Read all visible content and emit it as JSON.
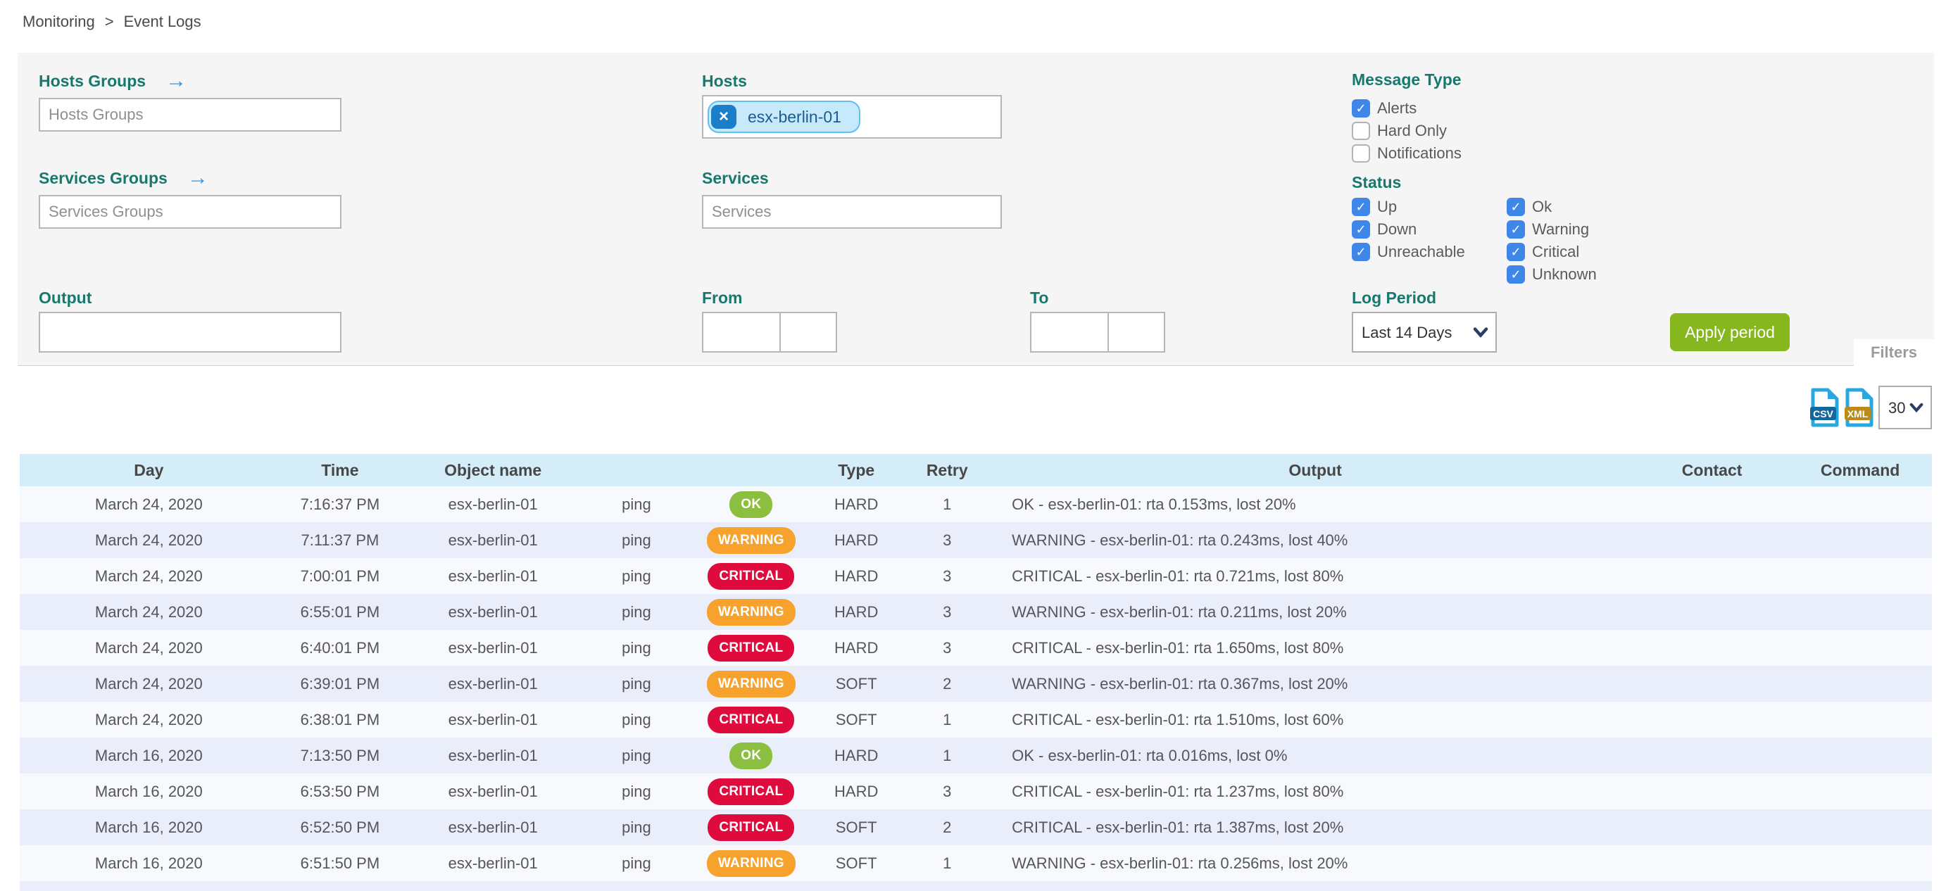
{
  "breadcrumb": {
    "items": [
      "Monitoring",
      "Event Logs"
    ],
    "separator": ">"
  },
  "filter_panel": {
    "goto_arrow": "→",
    "tag_remove_icon": "×",
    "hosts_groups_label": "Hosts Groups",
    "hosts_groups_placeholder": "Hosts Groups",
    "services_groups_label": "Services Groups",
    "services_groups_placeholder": "Services Groups",
    "hosts_label": "Hosts",
    "hosts_selected": [
      "esx-berlin-01"
    ],
    "services_label": "Services",
    "services_placeholder": "Services",
    "output_label": "Output",
    "output_value": "",
    "from_label": "From",
    "from_date": "",
    "from_time": "",
    "to_label": "To",
    "to_date": "",
    "to_time": "",
    "message_type_label": "Message Type",
    "message_type_options": [
      {
        "label": "Alerts",
        "checked": true
      },
      {
        "label": "Hard Only",
        "checked": false
      },
      {
        "label": "Notifications",
        "checked": false
      }
    ],
    "status_label": "Status",
    "status_host_options": [
      {
        "label": "Up",
        "checked": true
      },
      {
        "label": "Down",
        "checked": true
      },
      {
        "label": "Unreachable",
        "checked": true
      }
    ],
    "status_service_options": [
      {
        "label": "Ok",
        "checked": true
      },
      {
        "label": "Warning",
        "checked": true
      },
      {
        "label": "Critical",
        "checked": true
      },
      {
        "label": "Unknown",
        "checked": true
      }
    ],
    "log_period_label": "Log Period",
    "log_period_selected": "Last 14 Days",
    "apply_button_label": "Apply period",
    "filters_tab_label": "Filters"
  },
  "toolbar": {
    "csv_icon_label": "CSV",
    "xml_icon_label": "XML",
    "page_size_selected": "30"
  },
  "table": {
    "columns": [
      {
        "key": "day",
        "label": "Day"
      },
      {
        "key": "time",
        "label": "Time"
      },
      {
        "key": "object",
        "label": "Object name"
      },
      {
        "key": "service",
        "label": ""
      },
      {
        "key": "status",
        "label": ""
      },
      {
        "key": "type",
        "label": "Type"
      },
      {
        "key": "retry",
        "label": "Retry"
      },
      {
        "key": "output",
        "label": "Output"
      },
      {
        "key": "contact",
        "label": "Contact"
      },
      {
        "key": "command",
        "label": "Command"
      }
    ],
    "rows": [
      {
        "day": "March 24, 2020",
        "time": "7:16:37 PM",
        "object": "esx-berlin-01",
        "service": "ping",
        "status": "OK",
        "type": "HARD",
        "retry": "1",
        "output": "OK - esx-berlin-01: rta 0.153ms, lost 20%",
        "contact": "",
        "command": ""
      },
      {
        "day": "March 24, 2020",
        "time": "7:11:37 PM",
        "object": "esx-berlin-01",
        "service": "ping",
        "status": "WARNING",
        "type": "HARD",
        "retry": "3",
        "output": "WARNING - esx-berlin-01: rta 0.243ms, lost 40%",
        "contact": "",
        "command": ""
      },
      {
        "day": "March 24, 2020",
        "time": "7:00:01 PM",
        "object": "esx-berlin-01",
        "service": "ping",
        "status": "CRITICAL",
        "type": "HARD",
        "retry": "3",
        "output": "CRITICAL - esx-berlin-01: rta 0.721ms, lost 80%",
        "contact": "",
        "command": ""
      },
      {
        "day": "March 24, 2020",
        "time": "6:55:01 PM",
        "object": "esx-berlin-01",
        "service": "ping",
        "status": "WARNING",
        "type": "HARD",
        "retry": "3",
        "output": "WARNING - esx-berlin-01: rta 0.211ms, lost 20%",
        "contact": "",
        "command": ""
      },
      {
        "day": "March 24, 2020",
        "time": "6:40:01 PM",
        "object": "esx-berlin-01",
        "service": "ping",
        "status": "CRITICAL",
        "type": "HARD",
        "retry": "3",
        "output": "CRITICAL - esx-berlin-01: rta 1.650ms, lost 80%",
        "contact": "",
        "command": ""
      },
      {
        "day": "March 24, 2020",
        "time": "6:39:01 PM",
        "object": "esx-berlin-01",
        "service": "ping",
        "status": "WARNING",
        "type": "SOFT",
        "retry": "2",
        "output": "WARNING - esx-berlin-01: rta 0.367ms, lost 20%",
        "contact": "",
        "command": ""
      },
      {
        "day": "March 24, 2020",
        "time": "6:38:01 PM",
        "object": "esx-berlin-01",
        "service": "ping",
        "status": "CRITICAL",
        "type": "SOFT",
        "retry": "1",
        "output": "CRITICAL - esx-berlin-01: rta 1.510ms, lost 60%",
        "contact": "",
        "command": ""
      },
      {
        "day": "March 16, 2020",
        "time": "7:13:50 PM",
        "object": "esx-berlin-01",
        "service": "ping",
        "status": "OK",
        "type": "HARD",
        "retry": "1",
        "output": "OK - esx-berlin-01: rta 0.016ms, lost 0%",
        "contact": "",
        "command": ""
      },
      {
        "day": "March 16, 2020",
        "time": "6:53:50 PM",
        "object": "esx-berlin-01",
        "service": "ping",
        "status": "CRITICAL",
        "type": "HARD",
        "retry": "3",
        "output": "CRITICAL - esx-berlin-01: rta 1.237ms, lost 80%",
        "contact": "",
        "command": ""
      },
      {
        "day": "March 16, 2020",
        "time": "6:52:50 PM",
        "object": "esx-berlin-01",
        "service": "ping",
        "status": "CRITICAL",
        "type": "SOFT",
        "retry": "2",
        "output": "CRITICAL - esx-berlin-01: rta 1.387ms, lost 20%",
        "contact": "",
        "command": ""
      },
      {
        "day": "March 16, 2020",
        "time": "6:51:50 PM",
        "object": "esx-berlin-01",
        "service": "ping",
        "status": "WARNING",
        "type": "SOFT",
        "retry": "1",
        "output": "WARNING - esx-berlin-01: rta 0.256ms, lost 20%",
        "contact": "",
        "command": ""
      }
    ]
  },
  "colors": {
    "label_teal": "#17796d",
    "checkbox_blue": "#3e86e8",
    "apply_green": "#86b71f",
    "status_ok": "#8cbe3f",
    "status_warning": "#f7a22c",
    "status_critical": "#e00b3d",
    "table_header_bg": "#d4edf8",
    "row_odd_bg": "#f7f9fd",
    "row_even_bg": "#e9eefa",
    "panel_bg": "#f5f5f6",
    "tag_bg": "#c7e9fc",
    "tag_border": "#62bdf1",
    "tag_text": "#1a5c91",
    "tag_remove_bg": "#1b7ec9",
    "arrow_blue": "#2b95e9",
    "csv_badge": "#14679e",
    "xml_badge": "#bb8a18"
  }
}
